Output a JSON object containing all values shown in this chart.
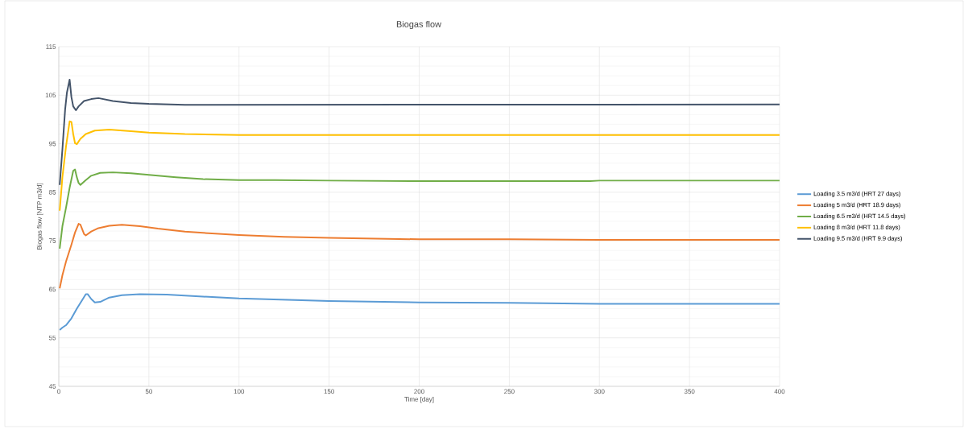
{
  "chart_data": {
    "type": "line",
    "title": "Biogas flow",
    "xlabel": "Time [day]",
    "ylabel": "Biogas flow [NTP m3/d]",
    "xlim": [
      0,
      400
    ],
    "ylim": [
      45,
      115
    ],
    "xticks": [
      0,
      50,
      100,
      150,
      200,
      250,
      300,
      350,
      400
    ],
    "yticks": [
      45,
      55,
      65,
      75,
      85,
      95,
      105,
      115
    ],
    "grid": true,
    "legend": "right",
    "marker": "none",
    "line_style": "solid",
    "series": [
      {
        "name": "Loading 3.5 m3/d (HRT 27 days)",
        "color": "#5b9bd5",
        "x": [
          0.5,
          2,
          4,
          7,
          10,
          13,
          15,
          16,
          18,
          20,
          23,
          28,
          35,
          45,
          60,
          80,
          100,
          150,
          200,
          250,
          300,
          400
        ],
        "values": [
          56.6,
          57.1,
          57.6,
          59.0,
          61.0,
          62.8,
          64.0,
          64.0,
          63.0,
          62.3,
          62.4,
          63.3,
          63.8,
          64.0,
          63.9,
          63.5,
          63.1,
          62.6,
          62.3,
          62.2,
          62.0,
          62.0
        ]
      },
      {
        "name": "Loading 5 m3/d (HRT 18.9 days)",
        "color": "#ed7d31",
        "x": [
          0.5,
          2,
          4,
          7,
          9,
          11,
          12,
          14,
          15,
          18,
          22,
          28,
          35,
          45,
          55,
          70,
          85,
          100,
          125,
          150,
          200,
          250,
          300,
          400
        ],
        "values": [
          65.2,
          67.9,
          70.7,
          74.2,
          76.7,
          78.5,
          78.3,
          76.4,
          76.1,
          76.9,
          77.6,
          78.1,
          78.3,
          78.0,
          77.5,
          76.9,
          76.5,
          76.2,
          75.8,
          75.6,
          75.3,
          75.3,
          75.2,
          75.2
        ]
      },
      {
        "name": "Loading 6.5 m3/d (HRT 14.5 days)",
        "color": "#70ad47",
        "x": [
          0.5,
          2,
          4,
          6,
          8,
          9,
          10,
          11,
          12,
          15,
          18,
          23,
          30,
          40,
          50,
          65,
          80,
          100,
          120,
          150,
          200,
          295,
          300,
          400
        ],
        "values": [
          73.4,
          78.0,
          81.8,
          85.9,
          89.4,
          89.7,
          88.1,
          86.9,
          86.5,
          87.5,
          88.4,
          89.0,
          89.1,
          88.9,
          88.6,
          88.1,
          87.7,
          87.5,
          87.5,
          87.4,
          87.3,
          87.3,
          87.4,
          87.4
        ]
      },
      {
        "name": "Loading 8 m3/d (HRT 11.8 days)",
        "color": "#ffc000",
        "x": [
          0.5,
          2,
          4,
          6,
          7,
          8,
          9,
          10,
          12,
          15,
          20,
          28,
          40,
          50,
          70,
          100,
          400
        ],
        "values": [
          81.2,
          88.1,
          94.4,
          99.6,
          99.5,
          97.0,
          95.1,
          94.9,
          96.0,
          97.0,
          97.7,
          97.9,
          97.6,
          97.3,
          97.0,
          96.8,
          96.8
        ]
      },
      {
        "name": "Loading 9.5 m3/d (HRT 9.9 days)",
        "color": "#44546a",
        "x": [
          0.5,
          2,
          3.5,
          4.5,
          6,
          7,
          8,
          9.5,
          11,
          14,
          18,
          22,
          30,
          40,
          50,
          70,
          83,
          400
        ],
        "values": [
          86.5,
          93.8,
          102.0,
          105.5,
          108.2,
          104.6,
          102.7,
          101.9,
          102.7,
          103.8,
          104.2,
          104.4,
          103.8,
          103.4,
          103.2,
          103.0,
          103.0,
          103.1
        ]
      }
    ]
  }
}
